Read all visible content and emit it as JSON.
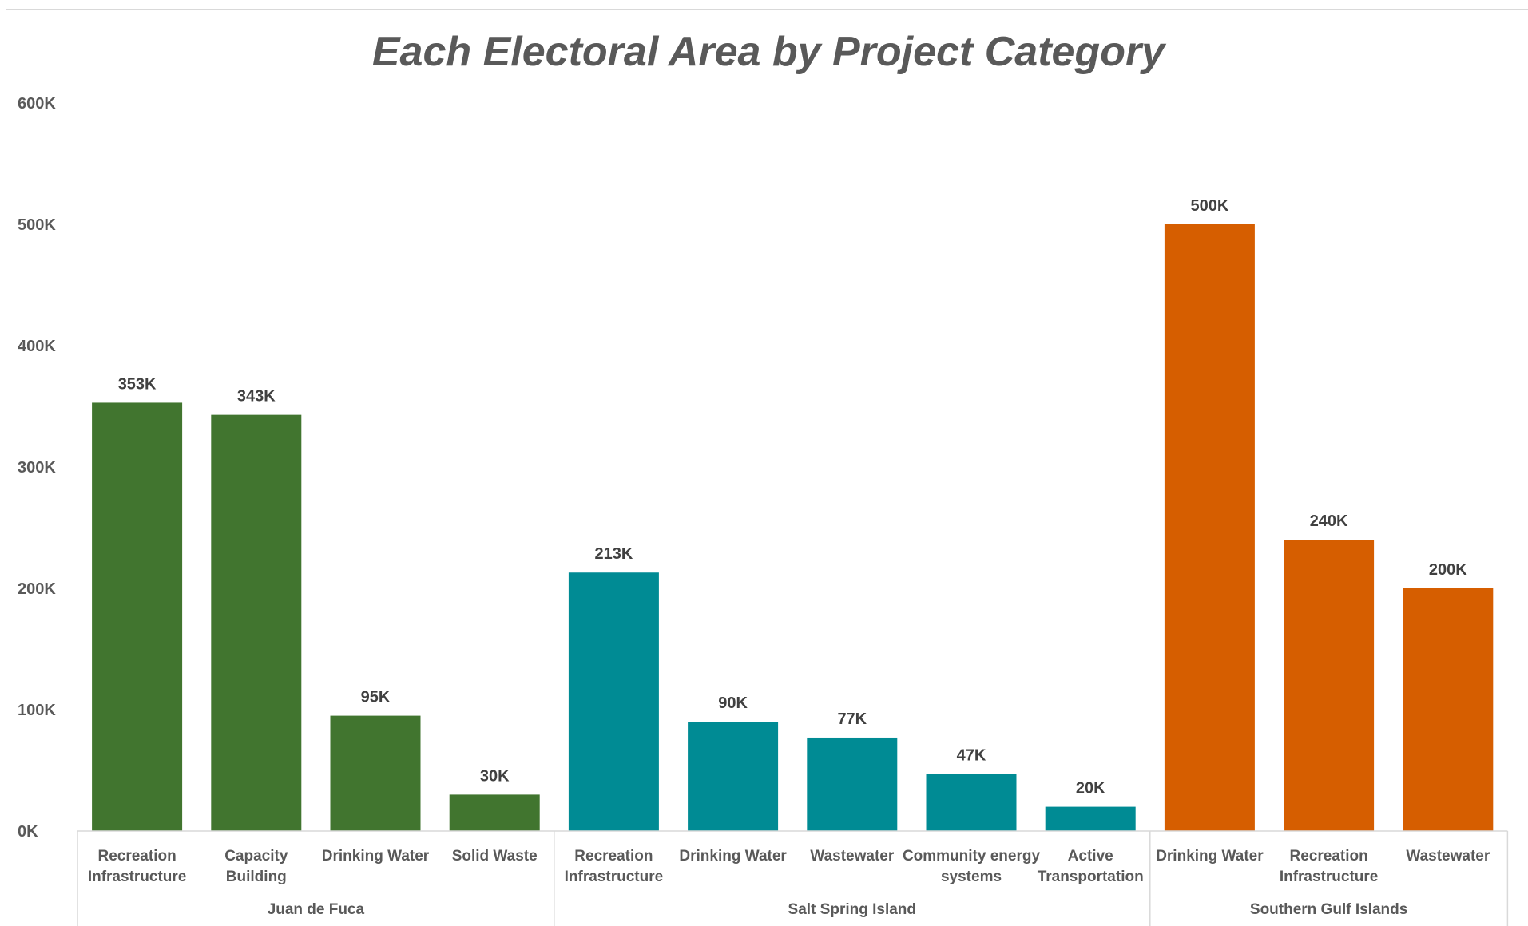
{
  "chart_data": {
    "type": "bar",
    "title": "Each Electoral Area by Project Category",
    "xlabel": "",
    "ylabel": "",
    "ylim": [
      0,
      600000
    ],
    "yticks": [
      {
        "value": 0,
        "label": "0K"
      },
      {
        "value": 100000,
        "label": "100K"
      },
      {
        "value": 200000,
        "label": "200K"
      },
      {
        "value": 300000,
        "label": "300K"
      },
      {
        "value": 400000,
        "label": "400K"
      },
      {
        "value": 500000,
        "label": "500K"
      },
      {
        "value": 600000,
        "label": "600K"
      }
    ],
    "grid": false,
    "legend": "none",
    "groups": [
      {
        "name": "Juan de Fuca",
        "color": "#41752F",
        "bars": [
          {
            "category": "Recreation Infrastructure",
            "value": 353000,
            "label": "353K"
          },
          {
            "category": "Capacity Building",
            "value": 343000,
            "label": "343K"
          },
          {
            "category": "Drinking Water",
            "value": 95000,
            "label": "95K"
          },
          {
            "category": "Solid Waste",
            "value": 30000,
            "label": "30K"
          }
        ]
      },
      {
        "name": "Salt Spring Island",
        "color": "#008B94",
        "bars": [
          {
            "category": "Recreation Infrastructure",
            "value": 213000,
            "label": "213K"
          },
          {
            "category": "Drinking Water",
            "value": 90000,
            "label": "90K"
          },
          {
            "category": "Wastewater",
            "value": 77000,
            "label": "77K"
          },
          {
            "category": "Community energy systems",
            "value": 47000,
            "label": "47K"
          },
          {
            "category": "Active Transportation",
            "value": 20000,
            "label": "20K"
          }
        ]
      },
      {
        "name": "Southern Gulf Islands",
        "color": "#D65E00",
        "bars": [
          {
            "category": "Drinking Water",
            "value": 500000,
            "label": "500K"
          },
          {
            "category": "Recreation Infrastructure",
            "value": 240000,
            "label": "240K"
          },
          {
            "category": "Wastewater",
            "value": 200000,
            "label": "200K"
          }
        ]
      }
    ]
  }
}
